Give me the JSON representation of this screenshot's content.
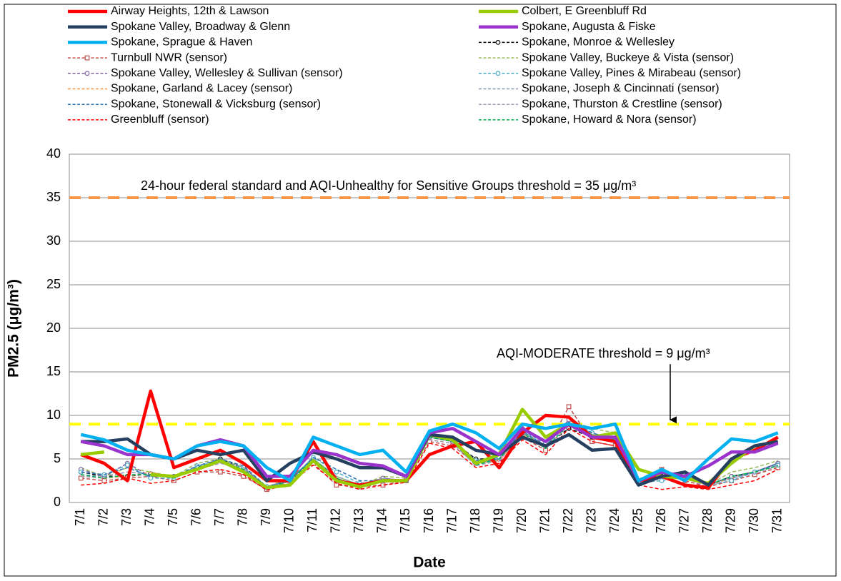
{
  "chart_data": {
    "type": "line",
    "y_label": "PM2.5 (μg/m³)",
    "x_label": "Date",
    "categories": [
      "7/1",
      "7/2",
      "7/3",
      "7/4",
      "7/5",
      "7/6",
      "7/7",
      "7/8",
      "7/9",
      "7/10",
      "7/11",
      "7/12",
      "7/13",
      "7/14",
      "7/15",
      "7/16",
      "7/17",
      "7/18",
      "7/19",
      "7/20",
      "7/21",
      "7/22",
      "7/23",
      "7/24",
      "7/25",
      "7/26",
      "7/27",
      "7/28",
      "7/29",
      "7/30",
      "7/31"
    ],
    "ylim": [
      0,
      40
    ],
    "yticks": [
      0,
      5,
      10,
      15,
      20,
      25,
      30,
      35,
      40
    ],
    "grid": true,
    "reference_lines": [
      {
        "value": 35,
        "color": "#f79646",
        "label": "24-hour federal standard and AQI-Unhealthy for Sensitive Groups threshold = 35 μg/m³"
      },
      {
        "value": 9,
        "color": "#ffff00",
        "label": "AQI-MODERATE  threshold = 9 μg/m³"
      }
    ],
    "series": [
      {
        "name": "Airway Heights, 12th & Lawson",
        "color": "#ff0000",
        "style": "solid",
        "marker": null,
        "values": [
          5.5,
          4.5,
          2.5,
          12.8,
          4,
          5,
          6,
          4.5,
          2.5,
          2.5,
          7,
          2.5,
          2,
          2.5,
          2.5,
          5.5,
          6.5,
          7,
          4,
          8,
          10,
          9.8,
          7.5,
          7,
          2.5,
          3,
          2,
          1.7,
          5,
          6,
          7.5
        ]
      },
      {
        "name": "Colbert, E Greenbluff Rd",
        "color": "#99cc00",
        "style": "solid",
        "marker": null,
        "values": [
          5.5,
          5.8,
          null,
          3.2,
          3,
          3.8,
          4.8,
          3.5,
          1.7,
          2,
          4.8,
          2.5,
          1.8,
          2.5,
          2.5,
          7.8,
          7.2,
          4.5,
          5.5,
          10.7,
          7.5,
          9,
          7.5,
          8,
          3.8,
          3,
          2.8,
          2.2,
          4.5,
          6.5,
          7
        ]
      },
      {
        "name": "Spokane Valley, Broadway & Glenn",
        "color": "#243f60",
        "style": "solid",
        "marker": null,
        "values": [
          7,
          7,
          7.3,
          5.5,
          5,
          6,
          5.5,
          6,
          2.5,
          4.5,
          5.8,
          5,
          4,
          4,
          3,
          7.8,
          7.5,
          6,
          5.5,
          7.5,
          6.5,
          7.8,
          6,
          6.2,
          2,
          3,
          3.5,
          2,
          5,
          6.5,
          7
        ]
      },
      {
        "name": "Spokane, Augusta & Fiske",
        "color": "#9933cc",
        "style": "solid",
        "marker": null,
        "values": [
          7,
          6.5,
          5.5,
          5.5,
          5,
          6.5,
          7.2,
          6.5,
          3,
          3,
          6,
          5.5,
          4.5,
          4.2,
          3,
          8,
          8.5,
          7,
          5.5,
          8.5,
          7,
          9,
          7.5,
          7.5,
          2.5,
          3.5,
          3,
          4.2,
          5.8,
          5.8,
          6.8
        ]
      },
      {
        "name": "Spokane, Sprague & Haven",
        "color": "#00b0f0",
        "style": "solid",
        "marker": null,
        "values": [
          7.8,
          7.2,
          6,
          5.5,
          5,
          6.5,
          7,
          6.5,
          4,
          2.5,
          7.5,
          6.5,
          5.5,
          6,
          3.5,
          8.2,
          9,
          8,
          6.2,
          9,
          8.5,
          9,
          8.5,
          9,
          2.5,
          3.8,
          2.5,
          5,
          7.3,
          7,
          8
        ]
      },
      {
        "name": "Spokane, Monroe & Wellesley",
        "color": "#000000",
        "style": "dashed",
        "marker": "circle",
        "values": [
          3.5,
          3,
          3,
          3.3,
          3,
          4,
          5,
          4,
          1.8,
          2.5,
          5,
          2.5,
          2,
          2.5,
          2.5,
          7.5,
          7,
          5,
          5,
          8,
          6.5,
          8.5,
          7.5,
          7,
          2.5,
          3,
          3,
          2,
          3,
          3.5,
          4.5
        ]
      },
      {
        "name": "Turnbull NWR (sensor)",
        "color": "#c0504d",
        "style": "dashed",
        "marker": "square",
        "values": [
          2.8,
          2.5,
          2.8,
          3,
          2.5,
          3.5,
          3.5,
          3,
          1.5,
          2.5,
          4.5,
          2,
          1.8,
          2,
          2.5,
          7,
          6.5,
          4.5,
          5,
          7.5,
          6,
          11,
          7,
          6.5,
          2.5,
          3.8,
          2.5,
          1.8,
          2.5,
          3.2,
          4
        ]
      },
      {
        "name": "Spokane Valley, Buckeye & Vista (sensor)",
        "color": "#9bbb59",
        "style": "dashed",
        "marker": null,
        "values": [
          4,
          3,
          4,
          3.5,
          3,
          4.5,
          5,
          4,
          1.8,
          2.8,
          5,
          3,
          2,
          3,
          2.8,
          7.5,
          7.5,
          4.5,
          5,
          8,
          6.5,
          9.5,
          8.5,
          8,
          2.8,
          3,
          3,
          2,
          3.5,
          4,
          4.8
        ]
      },
      {
        "name": "Spokane Valley, Wellesley & Sullivan (sensor)",
        "color": "#8064a2",
        "style": "dashed",
        "marker": "circle",
        "values": [
          3.8,
          3,
          4.5,
          3,
          3,
          4,
          4.8,
          4,
          1.7,
          2.8,
          5,
          2.5,
          2,
          2.8,
          2.5,
          7.5,
          7,
          4.5,
          5,
          8.5,
          6.5,
          9.5,
          8,
          7,
          2.5,
          3.5,
          3,
          2,
          3,
          3.5,
          4.5
        ]
      },
      {
        "name": "Spokane Valley, Pines & Mirabeau (sensor)",
        "color": "#4bacc6",
        "style": "dashed",
        "marker": "circle",
        "values": [
          3.5,
          3.2,
          4.3,
          2.8,
          2.8,
          4.2,
          4.8,
          4,
          1.8,
          2.5,
          5.2,
          3.5,
          2.2,
          2.5,
          2.5,
          7.8,
          7.2,
          4.8,
          5.2,
          8.2,
          6.8,
          9,
          8,
          7.2,
          2.3,
          2.5,
          3,
          2,
          2.5,
          3.5,
          4.3
        ]
      },
      {
        "name": "Spokane, Garland & Lacey (sensor)",
        "color": "#f79646",
        "style": "dashed",
        "marker": null,
        "values": [
          3,
          2.8,
          3,
          3.5,
          2.8,
          3.8,
          4.5,
          3.8,
          1.6,
          2.5,
          4.8,
          2.8,
          1.8,
          2.5,
          2.5,
          7.2,
          6.8,
          4.5,
          4.8,
          7.8,
          6.2,
          9,
          7.8,
          7,
          2.5,
          3,
          2.8,
          2,
          2.8,
          3.5,
          4.2
        ]
      },
      {
        "name": "Spokane, Joseph & Cincinnati (sensor)",
        "color": "#8496b0",
        "style": "dashed",
        "marker": null,
        "values": [
          3.2,
          3,
          3.5,
          3.2,
          3,
          4,
          4.8,
          4,
          1.7,
          2.5,
          5,
          3,
          2,
          2.8,
          2.5,
          7.5,
          7,
          4.5,
          5,
          8,
          6.5,
          9.2,
          8,
          7,
          2.5,
          3,
          3,
          2,
          3,
          3.5,
          4.3
        ]
      },
      {
        "name": "Spokane, Stonewall & Vicksburg (sensor)",
        "color": "#2e75b6",
        "style": "dashed",
        "marker": null,
        "values": [
          3.5,
          3.2,
          4,
          3,
          3,
          4.2,
          5,
          4.2,
          1.8,
          2.5,
          5.2,
          3.8,
          2.5,
          2.5,
          2.5,
          7.8,
          7.2,
          4.8,
          5,
          8.2,
          6.5,
          9.2,
          8,
          7.2,
          2.5,
          2.8,
          3,
          2.2,
          2.8,
          3.5,
          4.5
        ]
      },
      {
        "name": "Spokane, Thurston & Crestline (sensor)",
        "color": "#9e9ebe",
        "style": "dashed",
        "marker": null,
        "values": [
          3,
          2.8,
          3.2,
          3.2,
          2.8,
          3.8,
          4.5,
          3.8,
          1.6,
          2.3,
          4.8,
          2.8,
          1.8,
          2.5,
          2.5,
          7.2,
          6.8,
          4.2,
          4.8,
          7.8,
          6.2,
          8.8,
          7.5,
          7,
          2.3,
          2.8,
          2.8,
          1.8,
          2.8,
          3.3,
          4.2
        ]
      },
      {
        "name": "Greenbluff (sensor)",
        "color": "#ff0000",
        "style": "dashed",
        "marker": null,
        "values": [
          2,
          2.2,
          2.8,
          2.2,
          2.5,
          3.5,
          3.8,
          3.2,
          1.4,
          2.2,
          4.3,
          2.2,
          1.5,
          2,
          2.3,
          6.8,
          6.2,
          4,
          4.5,
          7.2,
          5.5,
          8.5,
          7,
          6.5,
          2,
          1.5,
          1.8,
          1.5,
          2,
          2.5,
          3.8
        ]
      },
      {
        "name": "Spokane, Howard & Nora (sensor)",
        "color": "#00b050",
        "style": "dashed",
        "marker": null,
        "values": [
          3.2,
          2.8,
          3.2,
          3.2,
          2.8,
          4,
          4.8,
          3.8,
          1.6,
          2.5,
          5,
          2.8,
          1.8,
          2.5,
          2.5,
          7.5,
          7,
          4.3,
          5,
          8,
          6.2,
          9,
          7.8,
          7.2,
          2.5,
          3,
          3,
          2,
          3,
          3.5,
          4.2
        ]
      }
    ]
  }
}
